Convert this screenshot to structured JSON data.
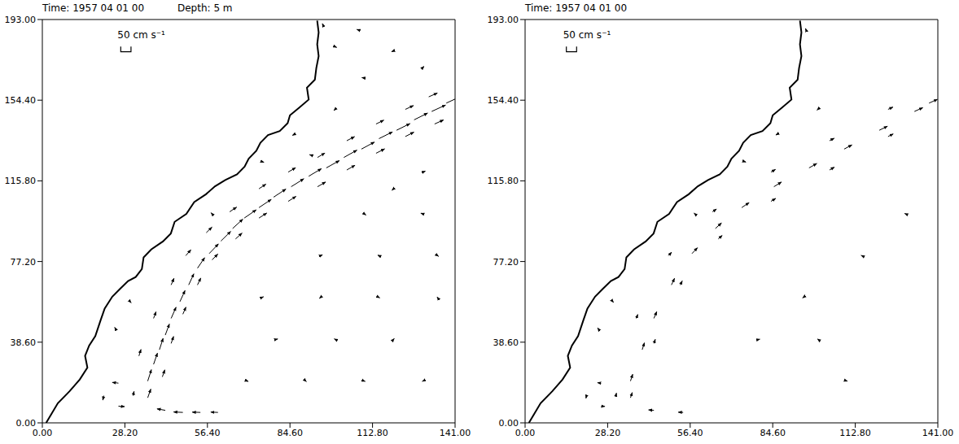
{
  "chart_data": [
    {
      "type": "quiver",
      "title": "Time: 1957 04 01 00",
      "subtitle": "Depth: 5 m",
      "color": "#000000",
      "key": {
        "value": 50,
        "label": "50 cm s⁻¹"
      },
      "xlim": [
        0,
        141
      ],
      "ylim": [
        0,
        193
      ],
      "xticks": [
        {
          "value": 0,
          "label": "0.00"
        },
        {
          "value": 28.2,
          "label": "28.20"
        },
        {
          "value": 56.4,
          "label": "56.40"
        },
        {
          "value": 84.6,
          "label": "84.60"
        },
        {
          "value": 112.8,
          "label": "112.80"
        },
        {
          "value": 141,
          "label": "141.00"
        }
      ],
      "yticks": [
        {
          "value": 0,
          "label": "0.00"
        },
        {
          "value": 38.6,
          "label": "38.60"
        },
        {
          "value": 77.2,
          "label": "77.20"
        },
        {
          "value": 115.8,
          "label": "115.80"
        },
        {
          "value": 154.4,
          "label": "154.40"
        },
        {
          "value": 193,
          "label": "193.00"
        }
      ],
      "coastline": {
        "x": [
          1.3,
          5.3,
          9.3,
          12.8,
          15.4,
          14.6,
          16.0,
          18.1,
          19.9,
          21.3,
          23.9,
          26.6,
          29.3,
          31.9,
          34.0,
          34.6,
          37.2,
          41.2,
          43.9,
          45.2,
          49.2,
          51.9,
          55.9,
          59.0,
          62.5,
          66.5,
          69.1,
          70.5,
          73.1,
          74.5,
          77.1,
          81.1,
          83.8,
          84.6,
          87.8,
          91.0,
          90.4,
          93.1,
          93.6,
          94.4,
          93.9,
          94.4,
          93.9
        ],
        "y": [
          0,
          9.4,
          15.1,
          20.8,
          26.4,
          32.1,
          37.0,
          41.5,
          49.1,
          54.7,
          60.4,
          64.2,
          67.9,
          69.8,
          73.6,
          79.2,
          83.0,
          86.8,
          90.6,
          96.2,
          100.0,
          105.7,
          109.4,
          113.2,
          116.2,
          118.9,
          122.6,
          126.4,
          130.2,
          134.0,
          137.7,
          139.6,
          143.4,
          147.2,
          150.9,
          154.7,
          160.4,
          164.2,
          169.8,
          175.5,
          181.1,
          186.8,
          192.5
        ]
      },
      "vectors": [
        {
          "x": 36,
          "y": 20,
          "u": 18,
          "v": 78
        },
        {
          "x": 38,
          "y": 28,
          "u": 19,
          "v": 77
        },
        {
          "x": 40,
          "y": 35,
          "u": 18,
          "v": 78
        },
        {
          "x": 42,
          "y": 42,
          "u": 20,
          "v": 76
        },
        {
          "x": 44,
          "y": 50,
          "u": 24,
          "v": 76
        },
        {
          "x": 47,
          "y": 58,
          "u": 25,
          "v": 76
        },
        {
          "x": 50,
          "y": 66,
          "u": 25,
          "v": 76
        },
        {
          "x": 53,
          "y": 74,
          "u": 35,
          "v": 72
        },
        {
          "x": 57,
          "y": 81,
          "u": 45,
          "v": 66
        },
        {
          "x": 61,
          "y": 87,
          "u": 48,
          "v": 66
        },
        {
          "x": 65,
          "y": 93,
          "u": 50,
          "v": 64
        },
        {
          "x": 69,
          "y": 98,
          "u": 58,
          "v": 56
        },
        {
          "x": 74,
          "y": 103,
          "u": 60,
          "v": 56
        },
        {
          "x": 79,
          "y": 108,
          "u": 60,
          "v": 55
        },
        {
          "x": 85,
          "y": 113,
          "u": 62,
          "v": 54
        },
        {
          "x": 91,
          "y": 118,
          "u": 62,
          "v": 52
        },
        {
          "x": 97,
          "y": 122,
          "u": 64,
          "v": 50
        },
        {
          "x": 103,
          "y": 127,
          "u": 64,
          "v": 50
        },
        {
          "x": 109,
          "y": 131,
          "u": 64,
          "v": 48
        },
        {
          "x": 115,
          "y": 136,
          "u": 66,
          "v": 46
        },
        {
          "x": 121,
          "y": 140,
          "u": 66,
          "v": 46
        },
        {
          "x": 127,
          "y": 145,
          "u": 66,
          "v": 46
        },
        {
          "x": 133,
          "y": 149,
          "u": 68,
          "v": 44
        },
        {
          "x": 138,
          "y": 153,
          "u": 68,
          "v": 44
        },
        {
          "x": 41,
          "y": 22,
          "u": 12,
          "v": 48
        },
        {
          "x": 44,
          "y": 38,
          "u": 12,
          "v": 48
        },
        {
          "x": 48,
          "y": 52,
          "u": 15,
          "v": 48
        },
        {
          "x": 53,
          "y": 66,
          "u": 16,
          "v": 47
        },
        {
          "x": 58,
          "y": 78,
          "u": 28,
          "v": 40
        },
        {
          "x": 66,
          "y": 88,
          "u": 32,
          "v": 40
        },
        {
          "x": 74,
          "y": 98,
          "u": 38,
          "v": 34
        },
        {
          "x": 84,
          "y": 106,
          "u": 38,
          "v": 34
        },
        {
          "x": 94,
          "y": 113,
          "u": 40,
          "v": 32
        },
        {
          "x": 104,
          "y": 121,
          "u": 40,
          "v": 32
        },
        {
          "x": 114,
          "y": 129,
          "u": 42,
          "v": 30
        },
        {
          "x": 124,
          "y": 137,
          "u": 42,
          "v": 30
        },
        {
          "x": 134,
          "y": 143,
          "u": 44,
          "v": 28
        },
        {
          "x": 33,
          "y": 32,
          "u": 10,
          "v": 45
        },
        {
          "x": 38,
          "y": 50,
          "u": 12,
          "v": 45
        },
        {
          "x": 44,
          "y": 66,
          "u": 14,
          "v": 45
        },
        {
          "x": 49,
          "y": 80,
          "u": 25,
          "v": 40
        },
        {
          "x": 56,
          "y": 91,
          "u": 28,
          "v": 38
        },
        {
          "x": 64,
          "y": 101,
          "u": 34,
          "v": 32
        },
        {
          "x": 74,
          "y": 112,
          "u": 34,
          "v": 32
        },
        {
          "x": 84,
          "y": 120,
          "u": 36,
          "v": 30
        },
        {
          "x": 94,
          "y": 127,
          "u": 36,
          "v": 30
        },
        {
          "x": 104,
          "y": 135,
          "u": 38,
          "v": 28
        },
        {
          "x": 114,
          "y": 143,
          "u": 38,
          "v": 26
        },
        {
          "x": 124,
          "y": 150,
          "u": 40,
          "v": 26
        },
        {
          "x": 132,
          "y": 156,
          "u": 42,
          "v": 26
        },
        {
          "x": 60,
          "y": 5,
          "u": -35,
          "v": 2
        },
        {
          "x": 54,
          "y": 5,
          "u": -40,
          "v": 2
        },
        {
          "x": 48,
          "y": 5,
          "u": -45,
          "v": 3
        },
        {
          "x": 42,
          "y": 6,
          "u": -40,
          "v": 10
        },
        {
          "x": 36,
          "y": 12,
          "u": 15,
          "v": 60
        },
        {
          "x": 31,
          "y": 13,
          "u": 5,
          "v": 30
        },
        {
          "x": 26,
          "y": 19,
          "u": -30,
          "v": 5
        },
        {
          "x": 21,
          "y": 13,
          "u": -5,
          "v": -30
        },
        {
          "x": 26,
          "y": 8,
          "u": 30,
          "v": -3
        },
        {
          "x": 58,
          "y": 100,
          "u": -5,
          "v": 8
        },
        {
          "x": 75,
          "y": 125,
          "u": 10,
          "v": -5
        },
        {
          "x": 86,
          "y": 138,
          "u": -8,
          "v": -6
        },
        {
          "x": 92,
          "y": 128,
          "u": -10,
          "v": 5
        },
        {
          "x": 100,
          "y": 150,
          "u": -6,
          "v": -8
        },
        {
          "x": 110,
          "y": 165,
          "u": -12,
          "v": 3
        },
        {
          "x": 100,
          "y": 180,
          "u": 8,
          "v": -5
        },
        {
          "x": 120,
          "y": 178,
          "u": -10,
          "v": -6
        },
        {
          "x": 130,
          "y": 170,
          "u": 6,
          "v": 8
        },
        {
          "x": 108,
          "y": 188,
          "u": -8,
          "v": 4
        },
        {
          "x": 96,
          "y": 190,
          "u": -5,
          "v": 15
        },
        {
          "x": 25,
          "y": 45,
          "u": -4,
          "v": 10
        },
        {
          "x": 30,
          "y": 58,
          "u": 5,
          "v": -8
        },
        {
          "x": 70,
          "y": 20,
          "u": 5,
          "v": -3
        },
        {
          "x": 90,
          "y": 20,
          "u": 3,
          "v": -4
        },
        {
          "x": 110,
          "y": 20,
          "u": 4,
          "v": -2
        },
        {
          "x": 130,
          "y": 20,
          "u": -3,
          "v": -2
        },
        {
          "x": 80,
          "y": 40,
          "u": 6,
          "v": 2
        },
        {
          "x": 100,
          "y": 40,
          "u": -4,
          "v": 3
        },
        {
          "x": 120,
          "y": 40,
          "u": 3,
          "v": 5
        },
        {
          "x": 75,
          "y": 60,
          "u": 8,
          "v": 5
        },
        {
          "x": 95,
          "y": 60,
          "u": -5,
          "v": -6
        },
        {
          "x": 115,
          "y": 60,
          "u": 4,
          "v": -3
        },
        {
          "x": 135,
          "y": 60,
          "u": -2,
          "v": 4
        },
        {
          "x": 95,
          "y": 80,
          "u": 10,
          "v": 6
        },
        {
          "x": 115,
          "y": 80,
          "u": -6,
          "v": 4
        },
        {
          "x": 135,
          "y": 80,
          "u": 5,
          "v": -5
        },
        {
          "x": 110,
          "y": 100,
          "u": 8,
          "v": -8
        },
        {
          "x": 130,
          "y": 100,
          "u": -10,
          "v": 5
        },
        {
          "x": 130,
          "y": 120,
          "u": 12,
          "v": 6
        },
        {
          "x": 120,
          "y": 112,
          "u": -8,
          "v": -10
        }
      ]
    },
    {
      "type": "quiver",
      "title": "Time: 1957 04 01 00",
      "color": "#000000",
      "key": {
        "value": 50,
        "label": "50 cm s⁻¹"
      },
      "xlim": [
        0,
        141
      ],
      "ylim": [
        0,
        193
      ],
      "xticks": [
        {
          "value": 0,
          "label": "0.00"
        },
        {
          "value": 28.2,
          "label": "28.20"
        },
        {
          "value": 56.4,
          "label": "56.40"
        },
        {
          "value": 84.6,
          "label": "84.60"
        },
        {
          "value": 112.8,
          "label": "112.80"
        },
        {
          "value": 141,
          "label": "141.00"
        }
      ],
      "yticks": [
        {
          "value": 0,
          "label": "0.00"
        },
        {
          "value": 38.6,
          "label": "38.60"
        },
        {
          "value": 77.2,
          "label": "77.20"
        },
        {
          "value": 115.8,
          "label": "115.80"
        },
        {
          "value": 154.4,
          "label": "154.40"
        },
        {
          "value": 193,
          "label": "193.00"
        }
      ],
      "coastline": {
        "x": [
          1.3,
          5.3,
          9.3,
          12.8,
          15.4,
          14.6,
          16.0,
          18.1,
          19.9,
          21.3,
          23.9,
          26.6,
          29.3,
          31.9,
          34.0,
          34.6,
          37.2,
          41.2,
          43.9,
          45.2,
          49.2,
          51.9,
          55.9,
          59.0,
          62.5,
          66.5,
          69.1,
          70.5,
          73.1,
          74.5,
          77.1,
          81.1,
          83.8,
          84.6,
          87.8,
          91.0,
          90.4,
          93.1,
          93.6,
          94.4,
          93.9,
          94.4,
          93.9
        ],
        "y": [
          0,
          9.4,
          15.1,
          20.8,
          26.4,
          32.1,
          37.0,
          41.5,
          49.1,
          54.7,
          60.4,
          64.2,
          67.9,
          69.8,
          73.6,
          79.2,
          83.0,
          86.8,
          90.6,
          96.2,
          100.0,
          105.7,
          109.4,
          113.2,
          116.2,
          118.9,
          122.6,
          126.4,
          130.2,
          134.0,
          137.7,
          139.6,
          143.4,
          147.2,
          150.9,
          154.7,
          160.4,
          164.2,
          169.8,
          175.5,
          181.1,
          186.8,
          192.5
        ]
      },
      "vectors": [
        {
          "x": 36,
          "y": 20,
          "u": 11,
          "v": 47
        },
        {
          "x": 40,
          "y": 35,
          "u": 11,
          "v": 47
        },
        {
          "x": 44,
          "y": 50,
          "u": 14,
          "v": 46
        },
        {
          "x": 50,
          "y": 66,
          "u": 15,
          "v": 45
        },
        {
          "x": 57,
          "y": 81,
          "u": 27,
          "v": 40
        },
        {
          "x": 65,
          "y": 93,
          "u": 30,
          "v": 38
        },
        {
          "x": 74,
          "y": 103,
          "u": 36,
          "v": 34
        },
        {
          "x": 85,
          "y": 113,
          "u": 37,
          "v": 32
        },
        {
          "x": 97,
          "y": 122,
          "u": 38,
          "v": 30
        },
        {
          "x": 109,
          "y": 131,
          "u": 38,
          "v": 29
        },
        {
          "x": 121,
          "y": 140,
          "u": 40,
          "v": 28
        },
        {
          "x": 133,
          "y": 149,
          "u": 41,
          "v": 26
        },
        {
          "x": 138,
          "y": 153,
          "u": 41,
          "v": 26
        },
        {
          "x": 44,
          "y": 38,
          "u": 7,
          "v": 28
        },
        {
          "x": 53,
          "y": 66,
          "u": 10,
          "v": 28
        },
        {
          "x": 66,
          "y": 88,
          "u": 19,
          "v": 24
        },
        {
          "x": 84,
          "y": 106,
          "u": 23,
          "v": 20
        },
        {
          "x": 104,
          "y": 121,
          "u": 24,
          "v": 19
        },
        {
          "x": 124,
          "y": 137,
          "u": 25,
          "v": 18
        },
        {
          "x": 38,
          "y": 50,
          "u": 7,
          "v": 27
        },
        {
          "x": 49,
          "y": 80,
          "u": 15,
          "v": 24
        },
        {
          "x": 64,
          "y": 101,
          "u": 20,
          "v": 19
        },
        {
          "x": 84,
          "y": 120,
          "u": 22,
          "v": 18
        },
        {
          "x": 104,
          "y": 135,
          "u": 23,
          "v": 17
        },
        {
          "x": 124,
          "y": 150,
          "u": 24,
          "v": 16
        },
        {
          "x": 54,
          "y": 5,
          "u": -24,
          "v": 1
        },
        {
          "x": 44,
          "y": 6,
          "u": -26,
          "v": 3
        },
        {
          "x": 36,
          "y": 12,
          "u": 9,
          "v": 36
        },
        {
          "x": 31,
          "y": 13,
          "u": 3,
          "v": 18
        },
        {
          "x": 26,
          "y": 19,
          "u": -18,
          "v": 3
        },
        {
          "x": 21,
          "y": 13,
          "u": -3,
          "v": -18
        },
        {
          "x": 26,
          "y": 8,
          "u": 18,
          "v": -2
        },
        {
          "x": 80,
          "y": 40,
          "u": 3,
          "v": 1
        },
        {
          "x": 100,
          "y": 40,
          "u": -2,
          "v": 2
        },
        {
          "x": 95,
          "y": 60,
          "u": -3,
          "v": -3
        },
        {
          "x": 115,
          "y": 80,
          "u": -3,
          "v": 2
        },
        {
          "x": 130,
          "y": 100,
          "u": -5,
          "v": 3
        },
        {
          "x": 58,
          "y": 100,
          "u": -4,
          "v": 5
        },
        {
          "x": 86,
          "y": 138,
          "u": -5,
          "v": -4
        },
        {
          "x": 100,
          "y": 150,
          "u": -4,
          "v": -5
        },
        {
          "x": 25,
          "y": 45,
          "u": -3,
          "v": 6
        },
        {
          "x": 30,
          "y": 58,
          "u": 3,
          "v": -5
        },
        {
          "x": 75,
          "y": 125,
          "u": 6,
          "v": -3
        },
        {
          "x": 110,
          "y": 20,
          "u": 2,
          "v": -1
        },
        {
          "x": 96,
          "y": 188,
          "u": -3,
          "v": 10
        }
      ]
    }
  ]
}
